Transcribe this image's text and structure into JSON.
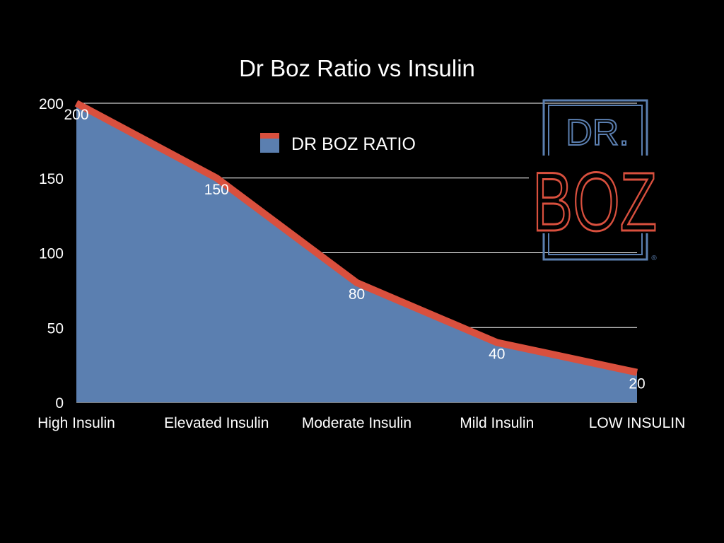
{
  "chart_data": {
    "type": "area",
    "title": "Dr Boz Ratio vs Insulin",
    "categories": [
      "High Insulin",
      "Elevated Insulin",
      "Moderate Insulin",
      "Mild Insulin",
      "LOW INSULIN"
    ],
    "series": [
      {
        "name": "DR BOZ RATIO",
        "values": [
          200,
          150,
          80,
          40,
          20
        ]
      }
    ],
    "data_labels": [
      "200",
      "150",
      "80",
      "40",
      "20"
    ],
    "yticks": [
      0,
      50,
      100,
      150,
      200
    ],
    "ylim": [
      0,
      200
    ],
    "xlabel": "",
    "ylabel": "",
    "grid": true,
    "legend_position": "top-center",
    "colors": {
      "area": "#5b7fb0",
      "line": "#d9503e",
      "background": "#000000",
      "text": "#ffffff",
      "grid": "#ffffff"
    }
  },
  "logo": {
    "line1": "DR.",
    "line2": "BOZ",
    "mark": "®",
    "colors": {
      "frame": "#5b7fb0",
      "line1": "#5b7fb0",
      "line2": "#d9503e"
    }
  }
}
